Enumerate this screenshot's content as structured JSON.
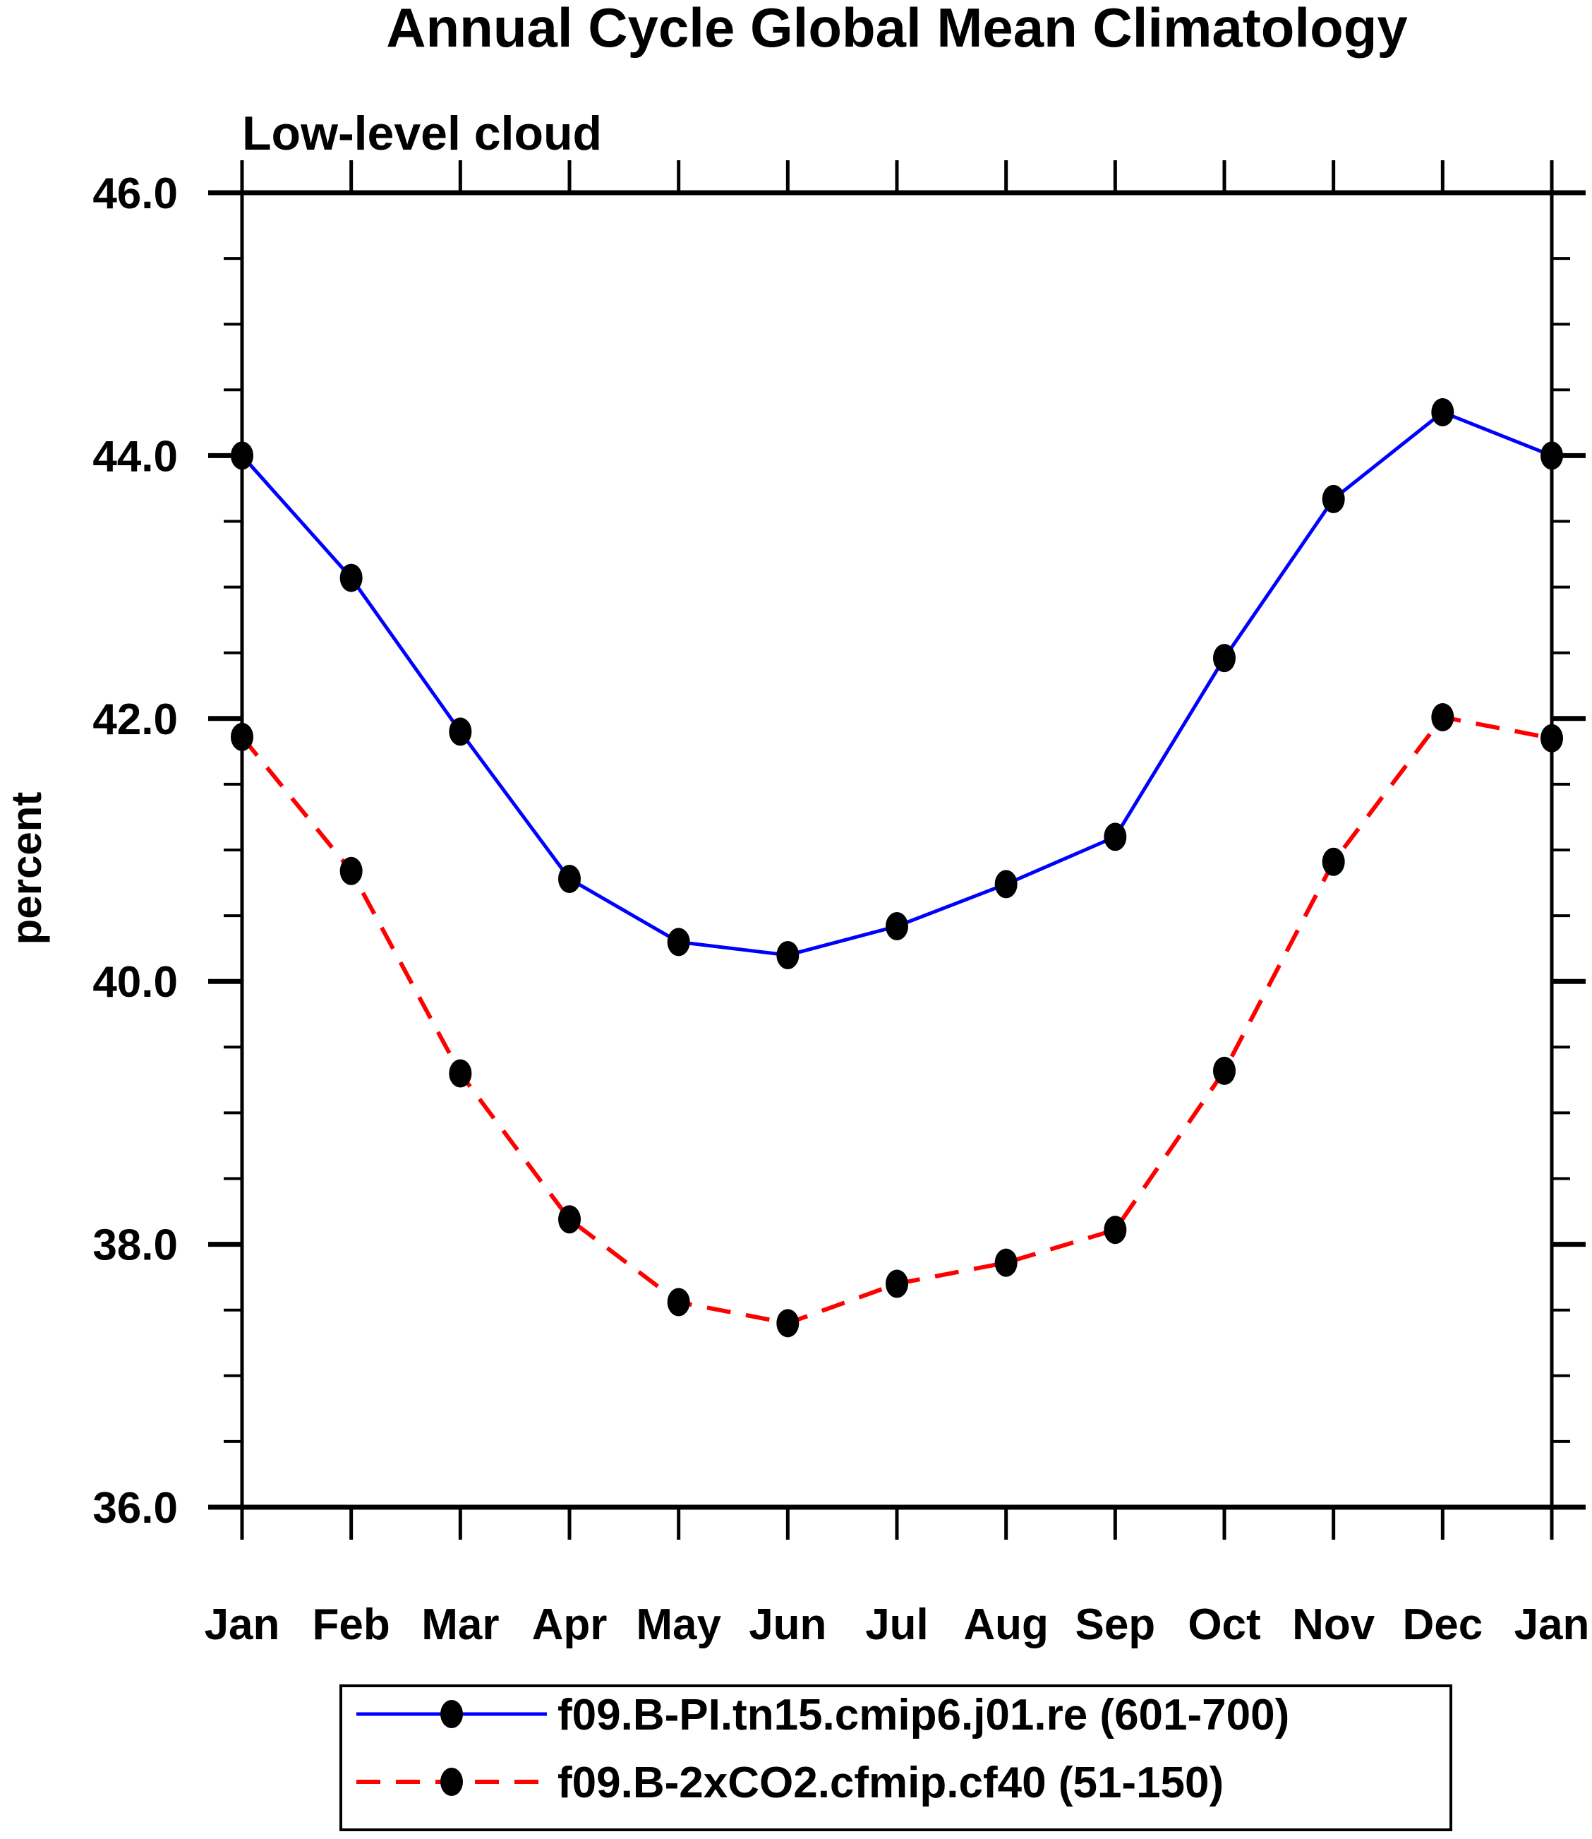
{
  "title": "Annual Cycle Global Mean Climatology",
  "subtitle": "Low-level cloud",
  "chart_data": {
    "type": "line",
    "x_labels": [
      "Jan",
      "Feb",
      "Mar",
      "Apr",
      "May",
      "Jun",
      "Jul",
      "Aug",
      "Sep",
      "Oct",
      "Nov",
      "Dec",
      "Jan"
    ],
    "ylabel": "percent",
    "ylim": [
      36.0,
      46.0
    ],
    "ytick_major_step": 2.0,
    "ytick_minor_step": 0.5,
    "ytick_labels": [
      "36.0",
      "38.0",
      "40.0",
      "42.0",
      "44.0",
      "46.0"
    ],
    "grid": false,
    "legend_position": "bottom",
    "marker": "filled-ellipse",
    "marker_color": "#000000",
    "series": [
      {
        "name": "f09.B-PI.tn15.cmip6.j01.re (601-700)",
        "color": "#0000ff",
        "line_style": "solid",
        "values": [
          44.0,
          43.07,
          41.9,
          40.78,
          40.3,
          40.2,
          40.42,
          40.74,
          41.1,
          42.46,
          43.67,
          44.33,
          44.0
        ]
      },
      {
        "name": "f09.B-2xCO2.cfmip.cf40 (51-150)",
        "color": "#ff0000",
        "line_style": "dashed",
        "values": [
          41.86,
          40.84,
          39.3,
          38.19,
          37.56,
          37.4,
          37.7,
          37.86,
          38.11,
          39.32,
          40.91,
          42.01,
          41.85
        ]
      }
    ]
  }
}
